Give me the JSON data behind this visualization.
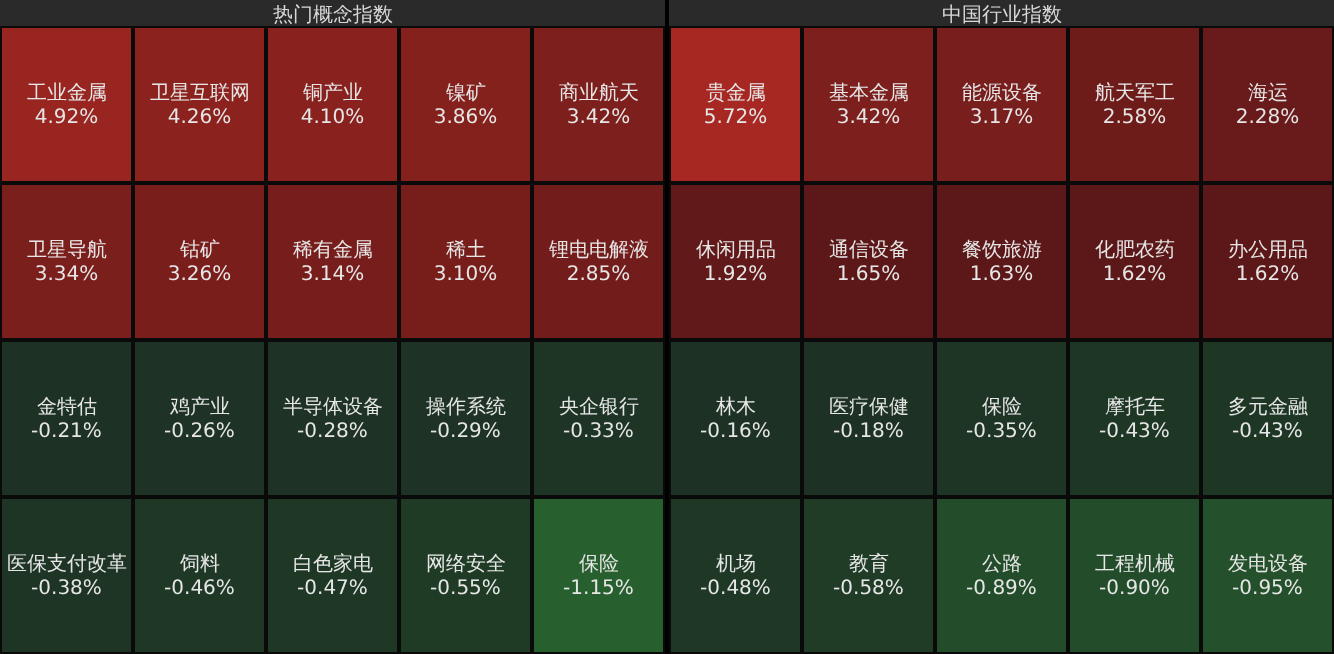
{
  "chart_data": [
    {
      "type": "other",
      "title": "热门概念指数",
      "categories": [
        "工业金属",
        "卫星互联网",
        "铜产业",
        "镍矿",
        "商业航天",
        "卫星导航",
        "钴矿",
        "稀有金属",
        "稀土",
        "锂电电解液",
        "金特估",
        "鸡产业",
        "半导体设备",
        "操作系统",
        "央企银行",
        "医保支付改革",
        "饲料",
        "白色家电",
        "网络安全",
        "保险"
      ],
      "values": [
        4.92,
        4.26,
        4.1,
        3.86,
        3.42,
        3.34,
        3.26,
        3.14,
        3.1,
        2.85,
        -0.21,
        -0.26,
        -0.28,
        -0.29,
        -0.33,
        -0.38,
        -0.46,
        -0.47,
        -0.55,
        -1.15
      ],
      "value_labels": [
        "4.92%",
        "4.26%",
        "4.10%",
        "3.86%",
        "3.42%",
        "3.34%",
        "3.26%",
        "3.14%",
        "3.10%",
        "2.85%",
        "-0.21%",
        "-0.26%",
        "-0.28%",
        "-0.29%",
        "-0.33%",
        "-0.38%",
        "-0.46%",
        "-0.47%",
        "-0.55%",
        "-1.15%"
      ]
    },
    {
      "type": "other",
      "title": "中国行业指数",
      "categories": [
        "贵金属",
        "基本金属",
        "能源设备",
        "航天军工",
        "海运",
        "休闲用品",
        "通信设备",
        "餐饮旅游",
        "化肥农药",
        "办公用品",
        "林木",
        "医疗保健",
        "保险",
        "摩托车",
        "多元金融",
        "机场",
        "教育",
        "公路",
        "工程机械",
        "发电设备"
      ],
      "values": [
        5.72,
        3.42,
        3.17,
        2.58,
        2.28,
        1.92,
        1.65,
        1.63,
        1.62,
        1.62,
        -0.16,
        -0.18,
        -0.35,
        -0.43,
        -0.43,
        -0.48,
        -0.58,
        -0.89,
        -0.9,
        -0.95
      ],
      "value_labels": [
        "5.72%",
        "3.42%",
        "3.17%",
        "2.58%",
        "2.28%",
        "1.92%",
        "1.65%",
        "1.63%",
        "1.62%",
        "1.62%",
        "-0.16%",
        "-0.18%",
        "-0.35%",
        "-0.43%",
        "-0.43%",
        "-0.48%",
        "-0.58%",
        "-0.89%",
        "-0.90%",
        "-0.95%"
      ]
    }
  ]
}
